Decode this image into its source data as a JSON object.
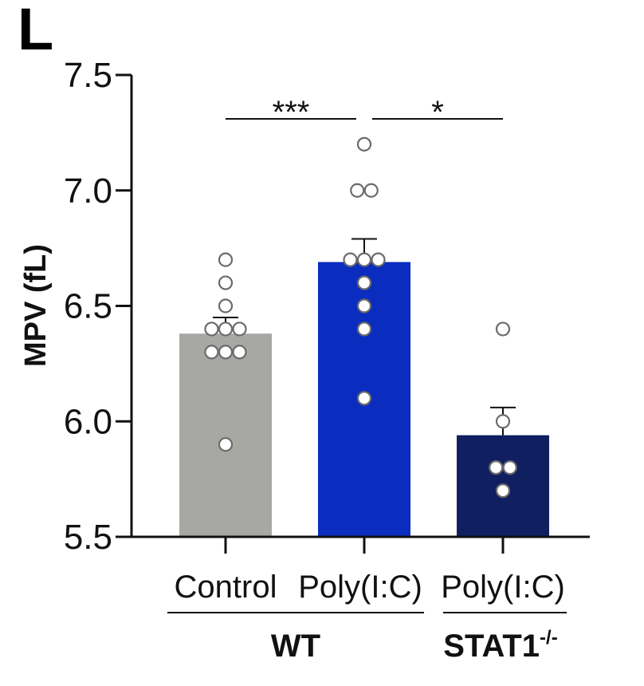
{
  "panel_label": "L",
  "chart_data": {
    "type": "bar",
    "ylabel": "MPV (fL)",
    "ylim": [
      5.5,
      7.5
    ],
    "yticks": [
      "5.5",
      "6.0",
      "6.5",
      "7.0",
      "7.5"
    ],
    "tick_values": [
      5.5,
      6.0,
      6.5,
      7.0,
      7.5
    ],
    "categories": [
      "Control",
      "Poly(I:C)",
      "Poly(I:C)"
    ],
    "groups": [
      {
        "label": "WT",
        "superscript": ""
      },
      {
        "label": "STAT1",
        "superscript": "-/-"
      }
    ],
    "bars": [
      {
        "category": "Control",
        "group": "WT",
        "mean": 6.38,
        "sem": 0.07,
        "color": "#a7a7a4",
        "points": [
          6.7,
          6.6,
          6.5,
          6.4,
          6.4,
          6.4,
          6.3,
          6.3,
          6.3,
          5.9
        ]
      },
      {
        "category": "Poly(I:C)",
        "group": "WT",
        "mean": 6.69,
        "sem": 0.1,
        "color": "#0a2dbf",
        "points": [
          7.2,
          7.0,
          7.0,
          6.7,
          6.7,
          6.7,
          6.6,
          6.5,
          6.4,
          6.1
        ]
      },
      {
        "category": "Poly(I:C)",
        "group": "STAT1-/-",
        "mean": 5.94,
        "sem": 0.12,
        "color": "#0f1f5f",
        "points": [
          6.4,
          6.0,
          5.8,
          5.8,
          5.7
        ]
      }
    ],
    "significance": [
      {
        "from": 0,
        "to": 1,
        "label": "***"
      },
      {
        "from": 1,
        "to": 2,
        "label": "*"
      }
    ],
    "legend": "none",
    "grid": false
  }
}
